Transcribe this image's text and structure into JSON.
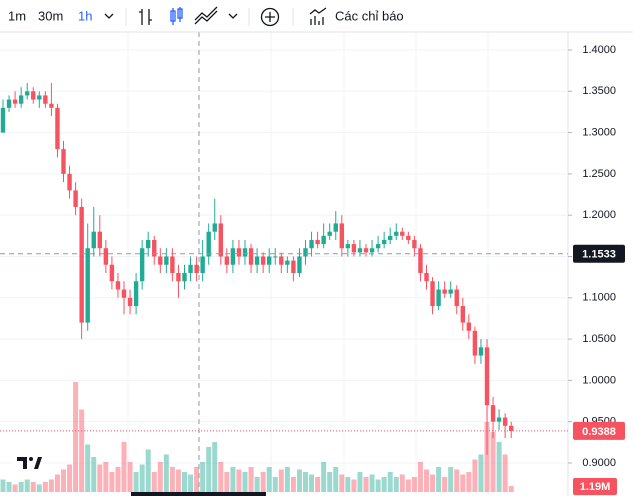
{
  "toolbar": {
    "intervals": [
      "1m",
      "30m",
      "1h"
    ],
    "indicators": "Các chỉ báo"
  },
  "chart_data": {
    "type": "candlestick",
    "open": [
      1.3,
      1.33,
      1.34,
      1.335,
      1.345,
      1.35,
      1.34,
      1.345,
      1.335,
      1.33,
      1.28,
      1.25,
      1.23,
      1.21,
      1.07,
      1.16,
      1.18,
      1.16,
      1.14,
      1.12,
      1.11,
      1.1,
      1.09,
      1.12,
      1.16,
      1.17,
      1.15,
      1.14,
      1.15,
      1.13,
      1.12,
      1.13,
      1.14,
      1.13,
      1.15,
      1.18,
      1.19,
      1.15,
      1.14,
      1.16,
      1.15,
      1.16,
      1.14,
      1.15,
      1.14,
      1.15,
      1.15,
      1.14,
      1.145,
      1.13,
      1.15,
      1.16,
      1.17,
      1.165,
      1.175,
      1.18,
      1.19,
      1.16,
      1.165,
      1.155,
      1.16,
      1.155,
      1.16,
      1.165,
      1.17,
      1.175,
      1.18,
      1.175,
      1.17,
      1.16,
      1.13,
      1.12,
      1.09,
      1.11,
      1.105,
      1.11,
      1.09,
      1.07,
      1.06,
      1.03,
      1.04,
      0.97,
      0.95,
      0.955,
      0.945
    ],
    "high": [
      1.34,
      1.345,
      1.35,
      1.355,
      1.36,
      1.355,
      1.35,
      1.35,
      1.36,
      1.335,
      1.29,
      1.26,
      1.24,
      1.22,
      1.19,
      1.21,
      1.2,
      1.17,
      1.15,
      1.13,
      1.12,
      1.11,
      1.13,
      1.17,
      1.18,
      1.175,
      1.16,
      1.16,
      1.16,
      1.14,
      1.14,
      1.15,
      1.15,
      1.17,
      1.19,
      1.22,
      1.2,
      1.16,
      1.17,
      1.17,
      1.17,
      1.165,
      1.16,
      1.155,
      1.16,
      1.16,
      1.155,
      1.15,
      1.15,
      1.16,
      1.17,
      1.18,
      1.18,
      1.19,
      1.19,
      1.205,
      1.2,
      1.17,
      1.17,
      1.17,
      1.165,
      1.17,
      1.175,
      1.18,
      1.185,
      1.19,
      1.185,
      1.18,
      1.175,
      1.165,
      1.14,
      1.125,
      1.12,
      1.12,
      1.12,
      1.115,
      1.1,
      1.08,
      1.065,
      1.05,
      1.05,
      0.98,
      0.965,
      0.96,
      0.95
    ],
    "low": [
      1.3,
      1.325,
      1.33,
      1.33,
      1.34,
      1.335,
      1.33,
      1.33,
      1.32,
      1.27,
      1.24,
      1.22,
      1.2,
      1.05,
      1.06,
      1.15,
      1.15,
      1.13,
      1.11,
      1.1,
      1.08,
      1.08,
      1.08,
      1.11,
      1.15,
      1.14,
      1.13,
      1.13,
      1.12,
      1.1,
      1.11,
      1.12,
      1.12,
      1.12,
      1.14,
      1.17,
      1.14,
      1.13,
      1.13,
      1.14,
      1.14,
      1.13,
      1.13,
      1.13,
      1.13,
      1.14,
      1.13,
      1.13,
      1.12,
      1.125,
      1.14,
      1.15,
      1.16,
      1.16,
      1.17,
      1.17,
      1.15,
      1.15,
      1.15,
      1.15,
      1.15,
      1.15,
      1.155,
      1.16,
      1.165,
      1.17,
      1.17,
      1.165,
      1.15,
      1.12,
      1.11,
      1.08,
      1.085,
      1.1,
      1.1,
      1.08,
      1.06,
      1.05,
      1.02,
      1.02,
      0.91,
      0.93,
      0.94,
      0.93,
      0.93
    ],
    "close": [
      1.33,
      1.34,
      1.335,
      1.345,
      1.35,
      1.34,
      1.345,
      1.335,
      1.33,
      1.28,
      1.25,
      1.23,
      1.21,
      1.07,
      1.16,
      1.18,
      1.16,
      1.14,
      1.12,
      1.11,
      1.1,
      1.09,
      1.12,
      1.16,
      1.17,
      1.15,
      1.14,
      1.15,
      1.13,
      1.12,
      1.13,
      1.14,
      1.13,
      1.15,
      1.18,
      1.19,
      1.15,
      1.14,
      1.16,
      1.15,
      1.16,
      1.14,
      1.15,
      1.14,
      1.15,
      1.15,
      1.14,
      1.145,
      1.13,
      1.15,
      1.16,
      1.17,
      1.165,
      1.175,
      1.18,
      1.19,
      1.16,
      1.165,
      1.155,
      1.16,
      1.155,
      1.16,
      1.165,
      1.17,
      1.175,
      1.18,
      1.175,
      1.17,
      1.16,
      1.13,
      1.12,
      1.09,
      1.11,
      1.105,
      1.11,
      1.09,
      1.07,
      1.06,
      1.03,
      1.04,
      0.97,
      0.95,
      0.955,
      0.945,
      0.9388
    ],
    "volume": [
      2.5,
      2,
      1.5,
      2,
      2.5,
      2,
      1.5,
      2,
      2.5,
      3.5,
      4.5,
      5.5,
      22,
      16.5,
      9.5,
      7,
      5.5,
      6,
      4,
      5,
      10,
      6,
      4,
      5.5,
      8.5,
      4,
      6,
      7.5,
      5,
      4.5,
      4,
      3.5,
      5,
      6,
      9,
      10,
      6,
      4,
      5,
      4.5,
      4,
      5,
      3,
      4,
      5,
      3,
      4.5,
      5,
      3,
      4.5,
      4,
      3.5,
      3,
      6,
      4,
      5,
      3.5,
      3,
      2.5,
      4,
      3,
      3.5,
      2.5,
      3,
      4,
      3,
      3.5,
      2.5,
      3,
      6,
      4.5,
      3.5,
      5,
      3,
      5,
      4.5,
      3.5,
      4,
      6.5,
      7.5,
      14,
      12,
      10,
      7.5,
      1.19
    ],
    "volume_label": "1.19M",
    "up_color": "#22ab94",
    "down_color": "#f7525f",
    "ylim": [
      0.86,
      1.4218
    ],
    "yticks": [
      {
        "value": 1.4,
        "label": "1.4000"
      },
      {
        "value": 1.35,
        "label": "1.3500"
      },
      {
        "value": 1.3,
        "label": "1.3000"
      },
      {
        "value": 1.25,
        "label": "1.2500"
      },
      {
        "value": 1.2,
        "label": "1.2000"
      },
      {
        "value": 1.15,
        "label": "1.1500"
      },
      {
        "value": 1.1,
        "label": "1.1000"
      },
      {
        "value": 1.05,
        "label": "1.0500"
      },
      {
        "value": 1.0,
        "label": "1.0000"
      },
      {
        "value": 0.95,
        "label": "0.9500"
      },
      {
        "value": 0.9,
        "label": "0.9000"
      }
    ],
    "crosshair_price": 1.1533,
    "grid": true
  }
}
